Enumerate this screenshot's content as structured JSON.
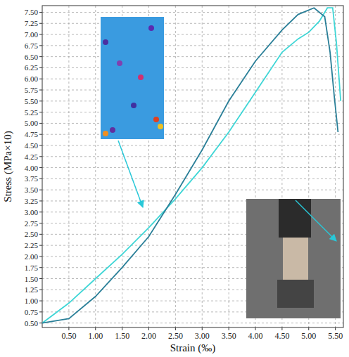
{
  "chart_data": {
    "type": "line",
    "x_label": "Strain (‰)",
    "y_label": "Stress (MPa×10)",
    "xlim": [
      0,
      5.65
    ],
    "ylim": [
      0.4,
      7.65
    ],
    "grid": true,
    "xticks": [
      {
        "value": 0.5,
        "label": "0.50"
      },
      {
        "value": 1.0,
        "label": "1.00"
      },
      {
        "value": 1.5,
        "label": "1.50"
      },
      {
        "value": 2.0,
        "label": "2.00"
      },
      {
        "value": 2.5,
        "label": "2.50"
      },
      {
        "value": 3.0,
        "label": "3.00"
      },
      {
        "value": 3.5,
        "label": "3.50"
      },
      {
        "value": 4.0,
        "label": "4.00"
      },
      {
        "value": 4.5,
        "label": "4.50"
      },
      {
        "value": 5.0,
        "label": "5.00"
      },
      {
        "value": 5.5,
        "label": "5.50"
      }
    ],
    "yticks": [
      {
        "value": 0.5,
        "label": "0.50"
      },
      {
        "value": 0.75,
        "label": "0.75"
      },
      {
        "value": 1.0,
        "label": "1.00"
      },
      {
        "value": 1.25,
        "label": "1.25"
      },
      {
        "value": 1.5,
        "label": "1.50"
      },
      {
        "value": 1.75,
        "label": "1.75"
      },
      {
        "value": 2.0,
        "label": "2.00"
      },
      {
        "value": 2.25,
        "label": "2.25"
      },
      {
        "value": 2.5,
        "label": "2.50"
      },
      {
        "value": 2.75,
        "label": "2.75"
      },
      {
        "value": 3.0,
        "label": "3.00"
      },
      {
        "value": 3.25,
        "label": "3.25"
      },
      {
        "value": 3.5,
        "label": "3.50"
      },
      {
        "value": 3.75,
        "label": "3.75"
      },
      {
        "value": 4.0,
        "label": "4.00"
      },
      {
        "value": 4.25,
        "label": "4.25"
      },
      {
        "value": 4.5,
        "label": "4.50"
      },
      {
        "value": 4.75,
        "label": "4.75"
      },
      {
        "value": 5.0,
        "label": "5.00"
      },
      {
        "value": 5.25,
        "label": "5.25"
      },
      {
        "value": 5.5,
        "label": "5.50"
      },
      {
        "value": 5.75,
        "label": "5.75"
      },
      {
        "value": 6.0,
        "label": "6.00"
      },
      {
        "value": 6.25,
        "label": "6.25"
      },
      {
        "value": 6.5,
        "label": "6.50"
      },
      {
        "value": 6.75,
        "label": "6.75"
      },
      {
        "value": 7.0,
        "label": "7.00"
      },
      {
        "value": 7.25,
        "label": "7.25"
      },
      {
        "value": 7.5,
        "label": "7.50"
      }
    ],
    "series": [
      {
        "color": "#3fd6d6",
        "line_style": "solid",
        "x": [
          0.0,
          0.5,
          1.0,
          1.5,
          2.0,
          2.5,
          3.0,
          3.5,
          4.0,
          4.5,
          4.8,
          5.0,
          5.2,
          5.35,
          5.45,
          5.52,
          5.57,
          5.6
        ],
        "values": [
          0.5,
          0.95,
          1.5,
          2.05,
          2.65,
          3.3,
          4.0,
          4.8,
          5.7,
          6.6,
          6.9,
          7.05,
          7.3,
          7.6,
          7.6,
          6.8,
          6.0,
          5.5
        ]
      },
      {
        "color": "#2a7f98",
        "line_style": "solid",
        "x": [
          0.0,
          0.5,
          1.0,
          1.5,
          2.0,
          2.5,
          3.0,
          3.5,
          4.0,
          4.5,
          4.8,
          5.1,
          5.3,
          5.4,
          5.48,
          5.55
        ],
        "values": [
          0.5,
          0.6,
          1.1,
          1.75,
          2.45,
          3.4,
          4.4,
          5.5,
          6.4,
          7.1,
          7.45,
          7.6,
          7.4,
          6.6,
          5.6,
          4.8
        ]
      }
    ]
  }
}
